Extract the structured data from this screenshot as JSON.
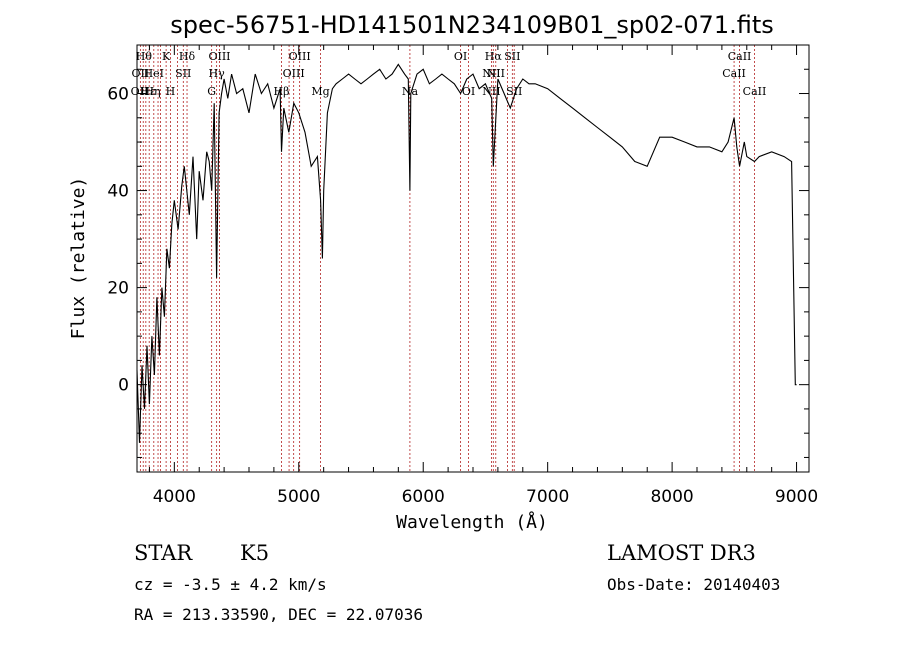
{
  "chart_data": {
    "type": "line",
    "title": "spec-56751-HD141501N234109B01_sp02-071.fits",
    "xlabel": "Wavelength (Å)",
    "ylabel": "Flux (relative)",
    "xlim": [
      3700,
      9100
    ],
    "ylim": [
      -18,
      70
    ],
    "xticks": [
      4000,
      5000,
      6000,
      7000,
      8000,
      9000
    ],
    "yticks": [
      0,
      20,
      40,
      60
    ],
    "series": [
      {
        "name": "flux",
        "x": [
          3700,
          3720,
          3740,
          3760,
          3780,
          3800,
          3820,
          3840,
          3860,
          3880,
          3900,
          3920,
          3940,
          3960,
          3980,
          4000,
          4030,
          4060,
          4080,
          4100,
          4120,
          4150,
          4180,
          4200,
          4230,
          4260,
          4280,
          4300,
          4320,
          4340,
          4360,
          4380,
          4400,
          4430,
          4460,
          4500,
          4550,
          4600,
          4650,
          4700,
          4750,
          4800,
          4850,
          4861,
          4880,
          4920,
          4960,
          5000,
          5050,
          5100,
          5150,
          5175,
          5190,
          5200,
          5230,
          5270,
          5300,
          5350,
          5400,
          5450,
          5500,
          5550,
          5600,
          5650,
          5700,
          5750,
          5800,
          5850,
          5880,
          5893,
          5900,
          5950,
          6000,
          6050,
          6100,
          6150,
          6200,
          6250,
          6300,
          6350,
          6400,
          6450,
          6500,
          6550,
          6563,
          6600,
          6650,
          6700,
          6750,
          6800,
          6850,
          6900,
          7000,
          7100,
          7200,
          7300,
          7400,
          7500,
          7600,
          7700,
          7800,
          7900,
          8000,
          8100,
          8200,
          8300,
          8400,
          8450,
          8498,
          8520,
          8542,
          8580,
          8600,
          8662,
          8700,
          8800,
          8900,
          8960,
          8990,
          9000
        ],
        "y": [
          3,
          -12,
          4,
          -5,
          8,
          -4,
          10,
          2,
          18,
          6,
          20,
          14,
          28,
          24,
          33,
          38,
          32,
          41,
          45,
          40,
          35,
          47,
          30,
          44,
          38,
          48,
          46,
          40,
          58,
          22,
          56,
          60,
          63,
          59,
          64,
          60,
          61,
          56,
          64,
          60,
          62,
          57,
          61,
          48,
          57,
          52,
          58,
          56,
          52,
          45,
          47,
          38,
          26,
          40,
          56,
          61,
          62,
          63,
          64,
          63,
          62,
          63,
          64,
          65,
          63,
          64,
          66,
          64,
          63,
          40,
          60,
          64,
          65,
          62,
          63,
          64,
          63,
          62,
          60,
          63,
          64,
          61,
          62,
          59,
          45,
          63,
          60,
          57,
          61,
          63,
          62,
          62,
          61,
          59,
          57,
          55,
          53,
          51,
          49,
          46,
          45,
          51,
          51,
          50,
          49,
          49,
          48,
          50,
          55,
          49,
          45,
          50,
          47,
          46,
          47,
          48,
          47,
          46,
          0,
          0
        ]
      }
    ],
    "line_markers": {
      "wavelengths": [
        3727,
        3750,
        3771,
        3798,
        3835,
        3869,
        3889,
        3934,
        3969,
        4026,
        4072,
        4102,
        4300,
        4340,
        4363,
        4861,
        4922,
        4959,
        5007,
        5175,
        5893,
        6300,
        6364,
        6548,
        6563,
        6583,
        6678,
        6716,
        6731,
        8498,
        8542,
        8662
      ],
      "label_row1": [
        {
          "text": "Hθ",
          "w": 3755
        },
        {
          "text": "K",
          "w": 3934
        },
        {
          "text": "Hδ",
          "w": 4102
        },
        {
          "text": "OIII",
          "w": 4363
        },
        {
          "text": "OIII",
          "w": 5007
        },
        {
          "text": "OI",
          "w": 6300
        },
        {
          "text": "Hα",
          "w": 6563
        },
        {
          "text": "SII",
          "w": 6716
        },
        {
          "text": "CaII",
          "w": 8542
        }
      ],
      "label_row2": [
        {
          "text": "OII",
          "w": 3727
        },
        {
          "text": "HeI",
          "w": 3835
        },
        {
          "text": "SII",
          "w": 4072
        },
        {
          "text": "Hγ",
          "w": 4340
        },
        {
          "text": "OIII",
          "w": 4959
        },
        {
          "text": "NII",
          "w": 6548
        },
        {
          "text": "NII",
          "w": 6583
        },
        {
          "text": "CaII",
          "w": 8498
        }
      ],
      "label_row3": [
        {
          "text": "OII",
          "w": 3720
        },
        {
          "text": "Hε",
          "w": 3789
        },
        {
          "text": "Hη",
          "w": 3825
        },
        {
          "text": "H",
          "w": 3969
        },
        {
          "text": "G",
          "w": 4300
        },
        {
          "text": "Hβ",
          "w": 4861
        },
        {
          "text": "Mg",
          "w": 5175
        },
        {
          "text": "Na",
          "w": 5893
        },
        {
          "text": "OI",
          "w": 6364
        },
        {
          "text": "NII",
          "w": 6548
        },
        {
          "text": "SII",
          "w": 6731
        },
        {
          "text": "CaII",
          "w": 8662
        }
      ]
    }
  },
  "info": {
    "object_class": "STAR",
    "subclass": "K5",
    "survey": "LAMOST DR3",
    "cz": "cz = -3.5 ± 4.2 km/s",
    "obs_date": "Obs-Date: 20140403",
    "coords": "RA = 213.33590, DEC =  22.07036"
  }
}
